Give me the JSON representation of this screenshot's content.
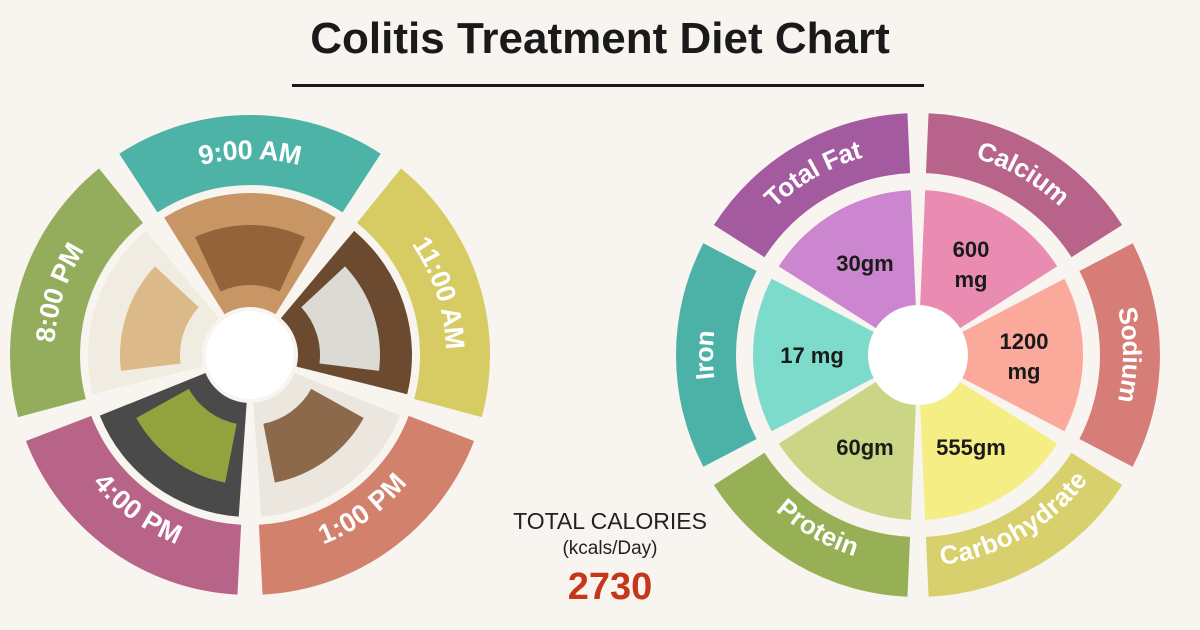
{
  "title": "Colitis Treatment Diet Chart",
  "meal_schedule": {
    "times": [
      {
        "label": "9:00 AM",
        "color": "#4db3a6",
        "food": "bread-slices-image"
      },
      {
        "label": "11:00 AM",
        "color": "#d6cc63",
        "food": "coconut-water-image"
      },
      {
        "label": "1:00 PM",
        "color": "#d2816d",
        "food": "lentil-curry-image"
      },
      {
        "label": "4:00 PM",
        "color": "#b86488",
        "food": "green-tea-image"
      },
      {
        "label": "8:00 PM",
        "color": "#93ad5d",
        "food": "chapati-image"
      }
    ]
  },
  "calories": {
    "label": "TOTAL CALORIES",
    "unit": "(kcals/Day)",
    "value": "2730"
  },
  "chart_data": {
    "type": "pie",
    "title": "",
    "slices": [
      {
        "name": "Calcium",
        "value_label": [
          "600",
          "mg"
        ],
        "value": 600,
        "unit": "mg",
        "ring_color": "#b8648a",
        "fill_color": "#ea8cb2"
      },
      {
        "name": "Sodium",
        "value_label": [
          "1200",
          "mg"
        ],
        "value": 1200,
        "unit": "mg",
        "ring_color": "#d57d76",
        "fill_color": "#fba99b"
      },
      {
        "name": "Carbohydrate",
        "value_label": [
          "555gm"
        ],
        "value": 555,
        "unit": "gm",
        "ring_color": "#d8d06c",
        "fill_color": "#f5ee84"
      },
      {
        "name": "Protein",
        "value_label": [
          "60gm"
        ],
        "value": 60,
        "unit": "gm",
        "ring_color": "#98b055",
        "fill_color": "#cad685"
      },
      {
        "name": "Iron",
        "value_label": [
          "17 mg"
        ],
        "value": 17,
        "unit": "mg",
        "ring_color": "#4cb2a7",
        "fill_color": "#7ddbcc"
      },
      {
        "name": "Total Fat",
        "value_label": [
          "30gm"
        ],
        "value": 30,
        "unit": "gm",
        "ring_color": "#a45a9e",
        "fill_color": "#cc86cf"
      }
    ]
  }
}
